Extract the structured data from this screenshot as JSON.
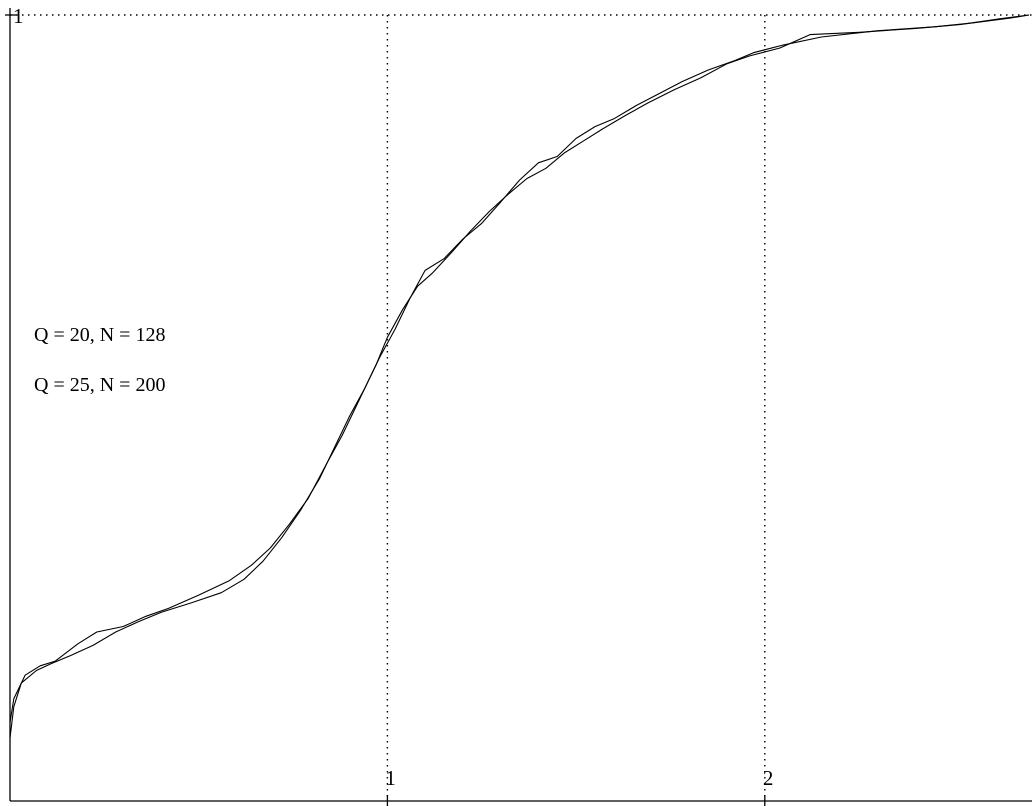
{
  "chart_data": {
    "type": "line",
    "title": "",
    "xlabel": "",
    "ylabel": "",
    "xlim": [
      0,
      2.7
    ],
    "ylim": [
      0,
      1
    ],
    "x_ticks": [
      {
        "value": 1,
        "label": "1"
      },
      {
        "value": 2,
        "label": "2"
      }
    ],
    "y_ticks": [
      {
        "value": 1,
        "label": "1"
      }
    ],
    "grid": "dotted at x=1, x=2 and y=1",
    "legend": {
      "placement": "center-left",
      "entries": [
        "Q = 20, N = 128",
        "Q = 25, N = 200"
      ]
    },
    "series": [
      {
        "values": [
          [
            0.0,
            0.1
          ],
          [
            0.01,
            0.13
          ],
          [
            0.04,
            0.16
          ],
          [
            0.08,
            0.172
          ],
          [
            0.12,
            0.178
          ],
          [
            0.18,
            0.2
          ],
          [
            0.23,
            0.215
          ],
          [
            0.3,
            0.222
          ],
          [
            0.36,
            0.235
          ],
          [
            0.42,
            0.245
          ],
          [
            0.5,
            0.262
          ],
          [
            0.58,
            0.28
          ],
          [
            0.64,
            0.3
          ],
          [
            0.69,
            0.322
          ],
          [
            0.74,
            0.352
          ],
          [
            0.79,
            0.385
          ],
          [
            0.84,
            0.43
          ],
          [
            0.88,
            0.465
          ],
          [
            0.92,
            0.505
          ],
          [
            0.95,
            0.535
          ],
          [
            0.98,
            0.565
          ],
          [
            1.02,
            0.6
          ],
          [
            1.06,
            0.64
          ],
          [
            1.1,
            0.675
          ],
          [
            1.15,
            0.69
          ],
          [
            1.2,
            0.715
          ],
          [
            1.25,
            0.735
          ],
          [
            1.3,
            0.762
          ],
          [
            1.35,
            0.79
          ],
          [
            1.4,
            0.812
          ],
          [
            1.45,
            0.82
          ],
          [
            1.5,
            0.843
          ],
          [
            1.55,
            0.858
          ],
          [
            1.6,
            0.868
          ],
          [
            1.66,
            0.885
          ],
          [
            1.72,
            0.9
          ],
          [
            1.78,
            0.915
          ],
          [
            1.85,
            0.93
          ],
          [
            1.92,
            0.942
          ],
          [
            1.97,
            0.952
          ],
          [
            2.05,
            0.962
          ],
          [
            2.15,
            0.972
          ],
          [
            2.3,
            0.98
          ],
          [
            2.45,
            0.985
          ],
          [
            2.55,
            0.99
          ],
          [
            2.65,
            0.996
          ],
          [
            2.7,
            1.0
          ]
        ]
      },
      {
        "values": [
          [
            0.0,
            0.08
          ],
          [
            0.01,
            0.12
          ],
          [
            0.03,
            0.15
          ],
          [
            0.07,
            0.166
          ],
          [
            0.11,
            0.175
          ],
          [
            0.16,
            0.185
          ],
          [
            0.22,
            0.198
          ],
          [
            0.28,
            0.215
          ],
          [
            0.34,
            0.228
          ],
          [
            0.4,
            0.24
          ],
          [
            0.48,
            0.252
          ],
          [
            0.56,
            0.265
          ],
          [
            0.62,
            0.282
          ],
          [
            0.67,
            0.305
          ],
          [
            0.72,
            0.335
          ],
          [
            0.77,
            0.37
          ],
          [
            0.82,
            0.41
          ],
          [
            0.86,
            0.45
          ],
          [
            0.9,
            0.49
          ],
          [
            0.94,
            0.525
          ],
          [
            0.97,
            0.555
          ],
          [
            1.0,
            0.59
          ],
          [
            1.04,
            0.625
          ],
          [
            1.08,
            0.655
          ],
          [
            1.12,
            0.672
          ],
          [
            1.17,
            0.698
          ],
          [
            1.22,
            0.725
          ],
          [
            1.27,
            0.75
          ],
          [
            1.32,
            0.772
          ],
          [
            1.37,
            0.792
          ],
          [
            1.42,
            0.805
          ],
          [
            1.47,
            0.825
          ],
          [
            1.52,
            0.84
          ],
          [
            1.57,
            0.855
          ],
          [
            1.63,
            0.872
          ],
          [
            1.69,
            0.888
          ],
          [
            1.76,
            0.905
          ],
          [
            1.83,
            0.92
          ],
          [
            1.9,
            0.938
          ],
          [
            1.96,
            0.948
          ],
          [
            2.04,
            0.958
          ],
          [
            2.12,
            0.975
          ],
          [
            2.25,
            0.978
          ],
          [
            2.4,
            0.983
          ],
          [
            2.52,
            0.988
          ],
          [
            2.62,
            0.995
          ],
          [
            2.7,
            1.0
          ]
        ]
      }
    ]
  }
}
